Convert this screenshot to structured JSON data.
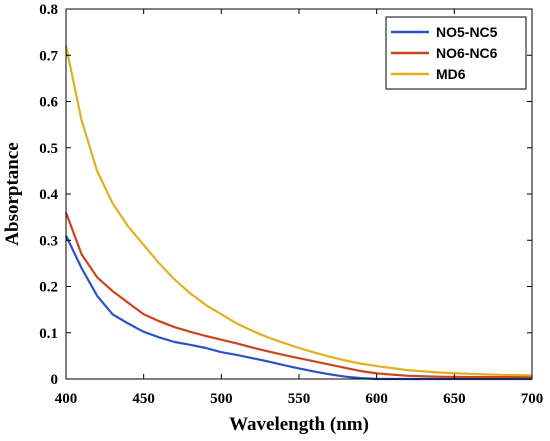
{
  "chart_data": {
    "type": "line",
    "title": "",
    "xlabel": "Wavelength (nm)",
    "ylabel": "Absorptance",
    "xlim": [
      400,
      700
    ],
    "ylim": [
      0,
      0.8
    ],
    "xticks": [
      400,
      450,
      500,
      550,
      600,
      650,
      700
    ],
    "yticks": [
      0,
      0.1,
      0.2,
      0.3,
      0.4,
      0.5,
      0.6,
      0.7,
      0.8
    ],
    "grid": false,
    "legend_position": "top-right",
    "series": [
      {
        "name": "NO5-NC5",
        "color": "#2b52c8",
        "x": [
          400,
          410,
          420,
          430,
          440,
          450,
          460,
          470,
          480,
          490,
          500,
          510,
          520,
          530,
          540,
          550,
          560,
          570,
          580,
          590,
          600,
          620,
          640,
          660,
          680,
          700
        ],
        "y": [
          0.31,
          0.24,
          0.18,
          0.14,
          0.12,
          0.102,
          0.09,
          0.08,
          0.074,
          0.067,
          0.058,
          0.052,
          0.045,
          0.038,
          0.03,
          0.023,
          0.016,
          0.01,
          0.005,
          0.002,
          0.0,
          0.0,
          0.0,
          0.0,
          0.0,
          0.0
        ]
      },
      {
        "name": "NO6-NC6",
        "color": "#c8461e",
        "x": [
          400,
          410,
          420,
          430,
          440,
          450,
          460,
          470,
          480,
          490,
          500,
          510,
          520,
          530,
          540,
          550,
          560,
          570,
          580,
          590,
          600,
          620,
          640,
          660,
          680,
          700
        ],
        "y": [
          0.36,
          0.27,
          0.22,
          0.19,
          0.165,
          0.14,
          0.125,
          0.112,
          0.102,
          0.093,
          0.085,
          0.077,
          0.068,
          0.06,
          0.052,
          0.045,
          0.038,
          0.031,
          0.024,
          0.017,
          0.012,
          0.007,
          0.005,
          0.004,
          0.004,
          0.004
        ]
      },
      {
        "name": "MD6",
        "color": "#e0b020",
        "x": [
          400,
          410,
          420,
          430,
          440,
          450,
          460,
          470,
          480,
          490,
          500,
          510,
          520,
          530,
          540,
          550,
          560,
          570,
          580,
          590,
          600,
          620,
          640,
          660,
          680,
          700
        ],
        "y": [
          0.72,
          0.56,
          0.45,
          0.38,
          0.33,
          0.29,
          0.25,
          0.215,
          0.185,
          0.16,
          0.14,
          0.12,
          0.104,
          0.09,
          0.078,
          0.067,
          0.057,
          0.048,
          0.04,
          0.033,
          0.028,
          0.019,
          0.014,
          0.011,
          0.009,
          0.008
        ]
      }
    ]
  }
}
